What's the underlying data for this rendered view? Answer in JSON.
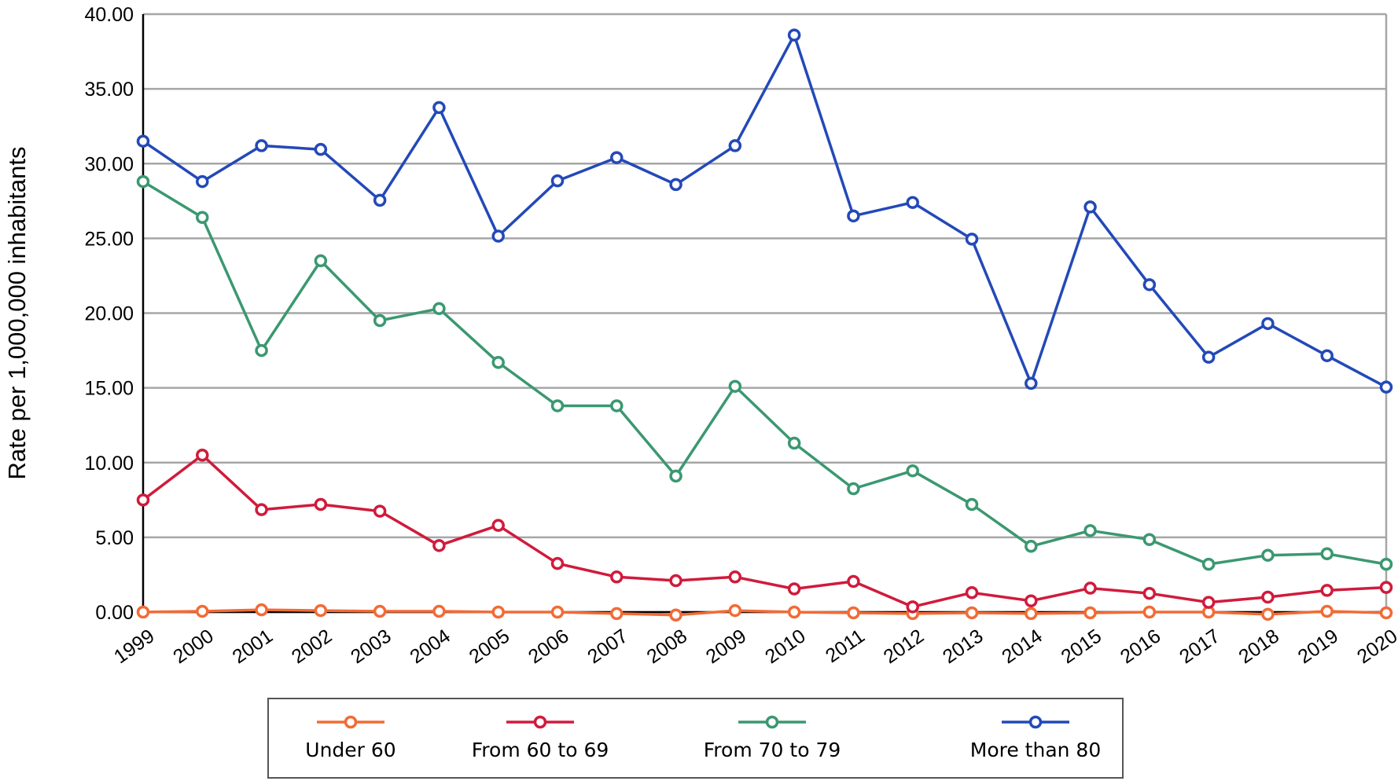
{
  "chart_data": {
    "type": "line",
    "title": "",
    "xlabel": "",
    "ylabel": "Rate per 1,000,000 inhabitants",
    "ylim": [
      0,
      40
    ],
    "yticks": [
      "0.00",
      "5.00",
      "10.00",
      "15.00",
      "20.00",
      "25.00",
      "30.00",
      "35.00",
      "40.00"
    ],
    "grid": true,
    "legend_position": "bottom",
    "categories": [
      "1999",
      "2000",
      "2001",
      "2002",
      "2003",
      "2004",
      "2005",
      "2006",
      "2007",
      "2008",
      "2009",
      "2010",
      "2011",
      "2012",
      "2013",
      "2014",
      "2015",
      "2016",
      "2017",
      "2018",
      "2019",
      "2020"
    ],
    "series": [
      {
        "name": "Under 60",
        "color": "#f26b36",
        "values": [
          0.0,
          0.05,
          0.15,
          0.1,
          0.05,
          0.05,
          0.0,
          0.0,
          -0.1,
          -0.2,
          0.1,
          0.0,
          -0.05,
          -0.1,
          -0.05,
          -0.1,
          -0.05,
          0.0,
          0.0,
          -0.15,
          0.05,
          -0.05
        ]
      },
      {
        "name": "From 60 to 69",
        "color": "#d01b3c",
        "values": [
          7.5,
          10.5,
          6.85,
          7.2,
          6.75,
          4.45,
          5.8,
          3.25,
          2.35,
          2.1,
          2.35,
          1.55,
          2.05,
          0.35,
          1.3,
          0.75,
          1.6,
          1.25,
          0.65,
          1.0,
          1.45,
          1.65
        ]
      },
      {
        "name": "From 70 to 79",
        "color": "#3b9870",
        "values": [
          28.8,
          26.4,
          17.5,
          23.5,
          19.5,
          20.3,
          16.7,
          13.8,
          13.8,
          9.1,
          15.1,
          11.3,
          8.25,
          9.45,
          7.2,
          4.4,
          5.45,
          4.85,
          3.2,
          3.8,
          3.9,
          3.2
        ]
      },
      {
        "name": "More than 80",
        "color": "#2349b8",
        "values": [
          31.5,
          28.8,
          31.2,
          30.95,
          27.55,
          33.75,
          25.15,
          28.85,
          30.4,
          28.6,
          31.2,
          38.6,
          26.5,
          27.4,
          24.95,
          15.3,
          27.1,
          21.9,
          17.05,
          19.3,
          17.15,
          15.05
        ]
      }
    ]
  }
}
